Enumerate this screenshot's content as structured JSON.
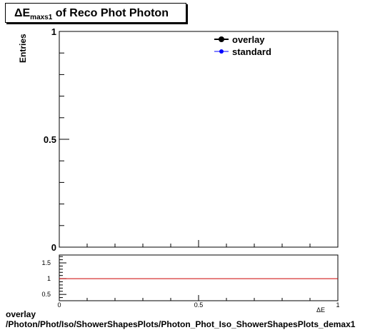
{
  "title": {
    "prefix": "ΔE",
    "sub": "maxs1",
    "rest": " of Reco Phot Photon"
  },
  "chart_data": [
    {
      "type": "line",
      "ylabel": "Entries",
      "xlim": [
        0,
        1
      ],
      "ylim": [
        0,
        1
      ],
      "yticks": [
        "0",
        "0.5",
        "1"
      ],
      "legend": {
        "placement": "top-right",
        "entries": [
          {
            "name": "overlay",
            "color": "#000000"
          },
          {
            "name": "standard",
            "color": "#0000ff"
          }
        ]
      },
      "series": []
    },
    {
      "type": "line",
      "xlim": [
        0,
        1
      ],
      "ylim": [
        0.3,
        1.75
      ],
      "yticks": [
        "0.5",
        "1",
        "1.5"
      ],
      "xticks": [
        "0",
        "0.5",
        "1"
      ],
      "xlabel_fragment": "ΔE",
      "reference_line": {
        "y": 1,
        "color": "#cc0000"
      }
    }
  ],
  "footer": {
    "line1": "overlay",
    "line2": "/Photon/Phot/Iso/ShowerShapesPlots/Photon_Phot_Iso_ShowerShapesPlots_demax1"
  }
}
